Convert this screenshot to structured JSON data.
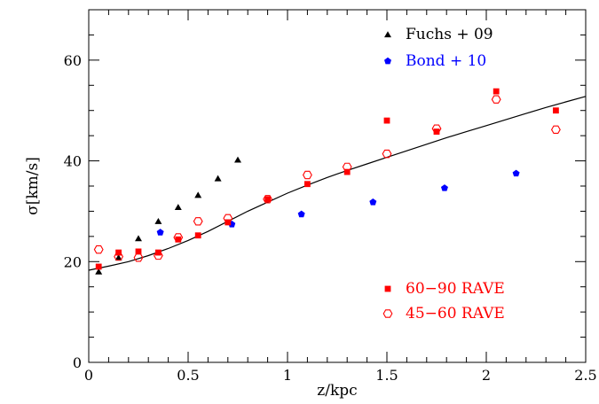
{
  "chart_data": {
    "type": "scatter",
    "xlabel": "z/kpc",
    "ylabel": "σ[km/s]",
    "xlim": [
      0,
      2.5
    ],
    "ylim": [
      0,
      70
    ],
    "x_ticks": [
      0,
      0.5,
      1,
      1.5,
      2,
      2.5
    ],
    "x_tick_labels": [
      "0",
      "0.5",
      "1",
      "1.5",
      "2",
      "2.5"
    ],
    "y_ticks": [
      0,
      20,
      40,
      60
    ],
    "y_tick_labels": [
      "0",
      "20",
      "40",
      "60"
    ],
    "grid": false,
    "series": [
      {
        "name": "Fuchs + 09",
        "marker": "triangle-filled",
        "color": "#000000",
        "legend_position": "top-right",
        "points": [
          [
            0.05,
            18.0
          ],
          [
            0.15,
            20.8
          ],
          [
            0.25,
            24.6
          ],
          [
            0.35,
            28.0
          ],
          [
            0.45,
            30.8
          ],
          [
            0.55,
            33.2
          ],
          [
            0.65,
            36.5
          ],
          [
            0.75,
            40.2
          ]
        ]
      },
      {
        "name": "Bond + 10",
        "marker": "pentagon-filled",
        "color": "#0000ff",
        "legend_position": "top-right",
        "points": [
          [
            0.36,
            25.8
          ],
          [
            0.72,
            27.4
          ],
          [
            1.07,
            29.4
          ],
          [
            1.43,
            31.8
          ],
          [
            1.79,
            34.6
          ],
          [
            2.15,
            37.5
          ]
        ]
      },
      {
        "name": "60−90 RAVE",
        "marker": "square-filled",
        "color": "#ff0000",
        "legend_position": "bottom-right",
        "points": [
          [
            0.05,
            19.0
          ],
          [
            0.15,
            21.8
          ],
          [
            0.25,
            22.0
          ],
          [
            0.35,
            21.8
          ],
          [
            0.45,
            24.4
          ],
          [
            0.55,
            25.2
          ],
          [
            0.7,
            27.8
          ],
          [
            0.9,
            32.4
          ],
          [
            1.1,
            35.4
          ],
          [
            1.3,
            37.8
          ],
          [
            1.5,
            48.0
          ],
          [
            1.75,
            45.8
          ],
          [
            2.05,
            53.8
          ],
          [
            2.35,
            50.0
          ]
        ]
      },
      {
        "name": "45−60 RAVE",
        "marker": "hexagon-open",
        "color": "#ff0000",
        "legend_position": "bottom-right",
        "points": [
          [
            0.05,
            22.4
          ],
          [
            0.15,
            21.0
          ],
          [
            0.25,
            20.8
          ],
          [
            0.35,
            21.2
          ],
          [
            0.45,
            24.8
          ],
          [
            0.55,
            28.0
          ],
          [
            0.7,
            28.6
          ],
          [
            0.9,
            32.4
          ],
          [
            1.1,
            37.2
          ],
          [
            1.3,
            38.8
          ],
          [
            1.5,
            41.4
          ],
          [
            1.75,
            46.4
          ],
          [
            2.05,
            52.2
          ],
          [
            2.35,
            46.2
          ]
        ]
      }
    ],
    "curve": {
      "type": "line",
      "color": "#000000",
      "points": [
        [
          0,
          18.3
        ],
        [
          0.1,
          19.1
        ],
        [
          0.2,
          20.0
        ],
        [
          0.3,
          21.2
        ],
        [
          0.4,
          22.6
        ],
        [
          0.5,
          24.2
        ],
        [
          0.6,
          26.0
        ],
        [
          0.7,
          28.0
        ],
        [
          0.8,
          30.0
        ],
        [
          0.9,
          31.8
        ],
        [
          1.0,
          33.6
        ],
        [
          1.1,
          35.2
        ],
        [
          1.2,
          36.7
        ],
        [
          1.3,
          38.1
        ],
        [
          1.4,
          39.4
        ],
        [
          1.5,
          40.7
        ],
        [
          1.6,
          42.0
        ],
        [
          1.7,
          43.3
        ],
        [
          1.8,
          44.6
        ],
        [
          1.9,
          45.8
        ],
        [
          2.0,
          47.0
        ],
        [
          2.1,
          48.2
        ],
        [
          2.2,
          49.4
        ],
        [
          2.3,
          50.6
        ],
        [
          2.4,
          51.7
        ],
        [
          2.5,
          52.8
        ]
      ]
    }
  }
}
